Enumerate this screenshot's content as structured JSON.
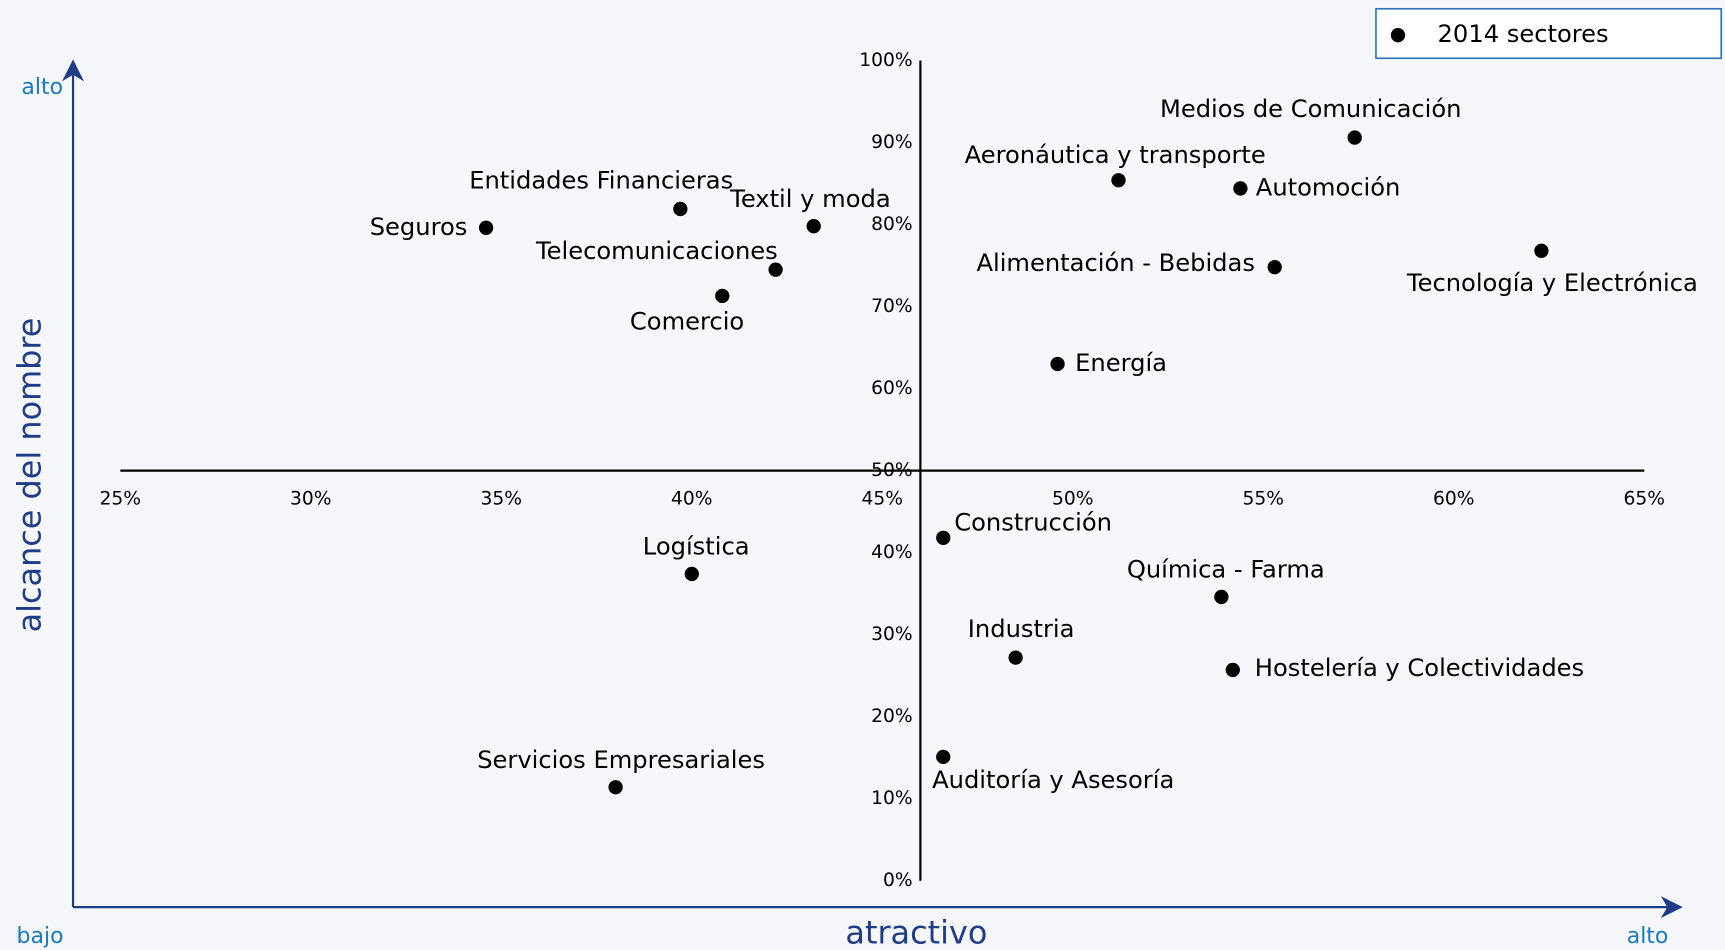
{
  "chart_data": {
    "type": "scatter",
    "y_label": "alcance del nombre",
    "x_label": "atractivo",
    "corner_labels": {
      "y_high": "alto",
      "origin": "bajo",
      "x_high": "alto"
    },
    "xlim": [
      25,
      65
    ],
    "ylim": [
      0,
      100
    ],
    "xticks": [
      {
        "value": 25,
        "label": "25%"
      },
      {
        "value": 30,
        "label": "30%"
      },
      {
        "value": 35,
        "label": "35%"
      },
      {
        "value": 40,
        "label": "40%"
      },
      {
        "value": 45,
        "label": "45%"
      },
      {
        "value": 50,
        "label": "50%"
      },
      {
        "value": 55,
        "label": "55%"
      },
      {
        "value": 60,
        "label": "60%"
      },
      {
        "value": 65,
        "label": "65%"
      }
    ],
    "yticks": [
      {
        "value": 0,
        "label": "0%"
      },
      {
        "value": 10,
        "label": "10%"
      },
      {
        "value": 20,
        "label": "20%"
      },
      {
        "value": 30,
        "label": "30%"
      },
      {
        "value": 40,
        "label": "40%"
      },
      {
        "value": 50,
        "label": "50%"
      },
      {
        "value": 60,
        "label": "60%"
      },
      {
        "value": 70,
        "label": "70%"
      },
      {
        "value": 80,
        "label": "80%"
      },
      {
        "value": 90,
        "label": "90%"
      },
      {
        "value": 100,
        "label": "100%"
      }
    ],
    "axis_cross": {
      "x": 46,
      "y": 50
    },
    "grid": false,
    "legend": "upper right",
    "series": [
      {
        "name": "2014 sectores",
        "color": "#000000",
        "labels": [
          "Medios de Comunicación",
          "Aeronáutica y transporte",
          "Automoción",
          "Tecnología y Electrónica",
          "Alimentación - Bebidas",
          "Energía",
          "Entidades Financieras",
          "Seguros",
          "Textil y moda",
          "Telecomunicaciones",
          "Comercio",
          "Logística",
          "Servicios Empresariales",
          "Construcción",
          "Química - Farma",
          "Industria",
          "Hostelería y Colectividades",
          "Auditoría y Asesoría"
        ],
        "x": [
          57.4,
          51.2,
          54.4,
          62.3,
          55.3,
          49.6,
          39.7,
          34.6,
          43.2,
          42.2,
          40.8,
          40.0,
          38.0,
          46.6,
          53.9,
          48.5,
          54.2,
          46.6
        ],
        "values": [
          90.6,
          85.4,
          84.4,
          76.8,
          74.8,
          63.0,
          81.9,
          79.6,
          79.8,
          74.5,
          71.3,
          37.4,
          11.4,
          41.8,
          34.6,
          27.2,
          25.7,
          15.1
        ]
      }
    ]
  }
}
